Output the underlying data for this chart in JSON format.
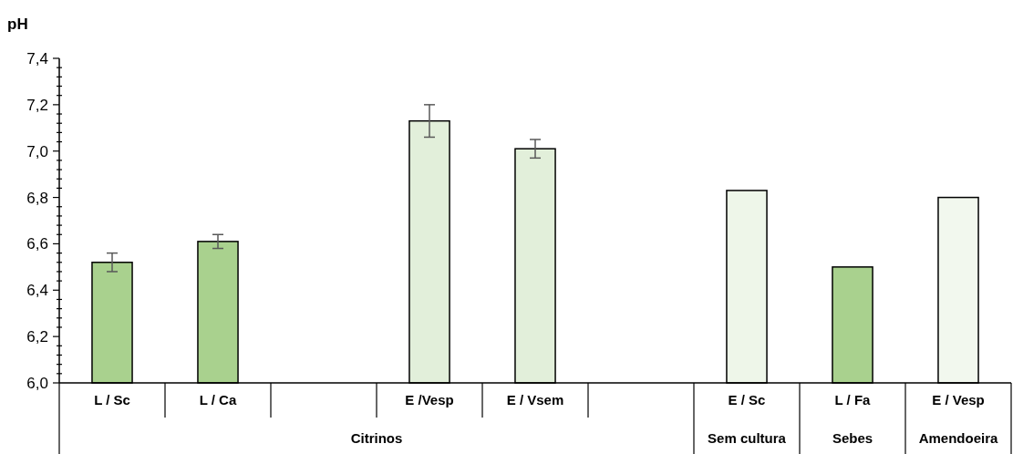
{
  "chart_data": {
    "type": "bar",
    "ylabel": "pH",
    "categories": [
      "L / Sc",
      "L / Ca",
      null,
      "E /Vesp",
      "E / Vsem",
      null,
      "E / Sc",
      "L / Fa",
      "E / Vesp"
    ],
    "values": [
      6.52,
      6.61,
      null,
      7.13,
      7.01,
      null,
      6.83,
      6.5,
      6.8
    ],
    "errors": [
      0.04,
      0.03,
      null,
      0.07,
      0.04,
      null,
      null,
      null,
      null
    ],
    "colors": [
      "#a9d18e",
      "#a9d18e",
      null,
      "#e2efda",
      "#e2efda",
      null,
      "#eef6e9",
      "#a9d18e",
      "#f2f8ee"
    ],
    "ylim": [
      6.0,
      7.4
    ],
    "yticks": [
      {
        "value": 6.0,
        "label": "6,0"
      },
      {
        "value": 6.04,
        "label": null
      },
      {
        "value": 6.08,
        "label": null
      },
      {
        "value": 6.12,
        "label": null
      },
      {
        "value": 6.16,
        "label": null
      },
      {
        "value": 6.2,
        "label": "6,2"
      },
      {
        "value": 6.24,
        "label": null
      },
      {
        "value": 6.28,
        "label": null
      },
      {
        "value": 6.32,
        "label": null
      },
      {
        "value": 6.36,
        "label": null
      },
      {
        "value": 6.4,
        "label": "6,4"
      },
      {
        "value": 6.44,
        "label": null
      },
      {
        "value": 6.48,
        "label": null
      },
      {
        "value": 6.52,
        "label": null
      },
      {
        "value": 6.56,
        "label": null
      },
      {
        "value": 6.6,
        "label": "6,6"
      },
      {
        "value": 6.64,
        "label": null
      },
      {
        "value": 6.68,
        "label": null
      },
      {
        "value": 6.72,
        "label": null
      },
      {
        "value": 6.76,
        "label": null
      },
      {
        "value": 6.8,
        "label": "6,8"
      },
      {
        "value": 6.84,
        "label": null
      },
      {
        "value": 6.88,
        "label": null
      },
      {
        "value": 6.92,
        "label": null
      },
      {
        "value": 6.96,
        "label": null
      },
      {
        "value": 7.0,
        "label": "7,0"
      },
      {
        "value": 7.04,
        "label": null
      },
      {
        "value": 7.08,
        "label": null
      },
      {
        "value": 7.12,
        "label": null
      },
      {
        "value": 7.16,
        "label": null
      },
      {
        "value": 7.2,
        "label": "7,2"
      },
      {
        "value": 7.24,
        "label": null
      },
      {
        "value": 7.28,
        "label": null
      },
      {
        "value": 7.32,
        "label": null
      },
      {
        "value": 7.36,
        "label": null
      },
      {
        "value": 7.4,
        "label": "7,4"
      }
    ],
    "annotations": [
      "Citrinos",
      "Sem cultura",
      "Sebes",
      "Amendoeira"
    ],
    "grid": false
  }
}
